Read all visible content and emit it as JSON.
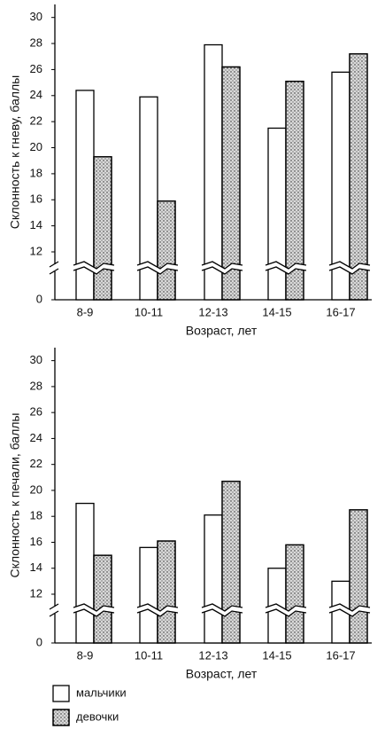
{
  "chart_data": [
    {
      "type": "bar",
      "ylabel": "Склонность к гневу, баллы",
      "xlabel": "Возраст, лет",
      "categories": [
        "8-9",
        "10-11",
        "12-13",
        "14-15",
        "16-17"
      ],
      "series": [
        {
          "color": "#ffffff",
          "values": [
            24.4,
            23.9,
            27.9,
            21.5,
            25.8
          ]
        },
        {
          "color": "#d9d9d9",
          "values": [
            19.3,
            15.9,
            26.2,
            25.1,
            27.2
          ]
        }
      ],
      "ylim": [
        0,
        31
      ],
      "yticks": [
        0,
        12,
        14,
        16,
        18,
        20,
        22,
        24,
        26,
        28,
        30
      ],
      "axis_break": true
    },
    {
      "type": "bar",
      "ylabel": "Склонность к печали, баллы",
      "xlabel": "Возраст, лет",
      "categories": [
        "8-9",
        "10-11",
        "12-13",
        "14-15",
        "16-17"
      ],
      "series": [
        {
          "name": "мальчики",
          "color": "#ffffff",
          "values": [
            19.0,
            15.6,
            18.1,
            14.0,
            13.0
          ]
        },
        {
          "name": "девочки",
          "color": "#d9d9d9",
          "values": [
            15.0,
            16.1,
            20.7,
            15.8,
            18.5
          ]
        }
      ],
      "ylim": [
        0,
        31
      ],
      "yticks": [
        0,
        12,
        14,
        16,
        18,
        20,
        22,
        24,
        26,
        28,
        30
      ],
      "axis_break": true,
      "legend": true
    }
  ]
}
